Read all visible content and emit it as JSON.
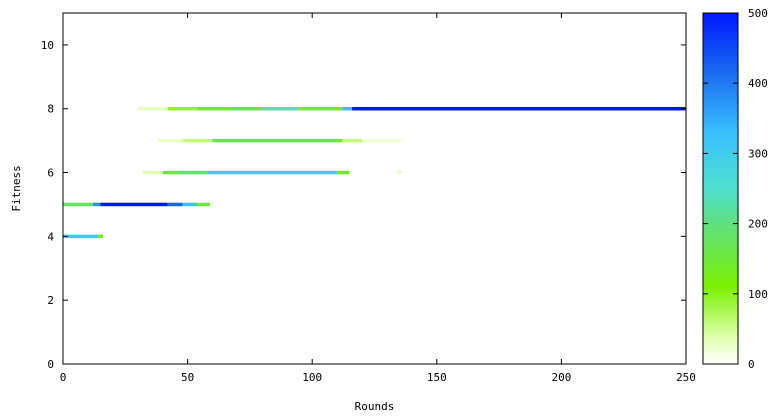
{
  "chart_data": {
    "type": "heatmap",
    "xlabel": "Rounds",
    "ylabel": "Fitness",
    "xlim": [
      0,
      250
    ],
    "ylim": [
      0,
      11
    ],
    "x_ticks": [
      0,
      50,
      100,
      150,
      200,
      250
    ],
    "y_ticks": [
      0,
      2,
      4,
      6,
      8,
      10
    ],
    "grid": false,
    "colorbar": {
      "range": [
        0,
        500
      ],
      "ticks": [
        0,
        100,
        200,
        300,
        400,
        500
      ],
      "stops": [
        {
          "v": 0,
          "color": "#ffffff"
        },
        {
          "v": 40,
          "color": "#dcffa8"
        },
        {
          "v": 110,
          "color": "#7cf000"
        },
        {
          "v": 200,
          "color": "#5ee080"
        },
        {
          "v": 250,
          "color": "#4fe0d0"
        },
        {
          "v": 330,
          "color": "#39c0ff"
        },
        {
          "v": 420,
          "color": "#1866f0"
        },
        {
          "v": 500,
          "color": "#0018ff"
        }
      ]
    },
    "series": [
      {
        "fitness": 4,
        "segments": [
          {
            "x0": 0,
            "x1": 14,
            "value": 310
          },
          {
            "x0": 14,
            "x1": 16,
            "value": 120
          }
        ]
      },
      {
        "fitness": 5,
        "segments": [
          {
            "x0": 0,
            "x1": 12,
            "value": 180
          },
          {
            "x0": 12,
            "x1": 15,
            "value": 380
          },
          {
            "x0": 15,
            "x1": 42,
            "value": 500
          },
          {
            "x0": 42,
            "x1": 48,
            "value": 420
          },
          {
            "x0": 48,
            "x1": 54,
            "value": 320
          },
          {
            "x0": 54,
            "x1": 59,
            "value": 130
          }
        ]
      },
      {
        "fitness": 6,
        "segments": [
          {
            "x0": 32,
            "x1": 40,
            "value": 35
          },
          {
            "x0": 40,
            "x1": 46,
            "value": 140
          },
          {
            "x0": 46,
            "x1": 58,
            "value": 190
          },
          {
            "x0": 58,
            "x1": 110,
            "value": 310
          },
          {
            "x0": 110,
            "x1": 115,
            "value": 140
          },
          {
            "x0": 134,
            "x1": 136,
            "value": 25
          }
        ]
      },
      {
        "fitness": 7,
        "segments": [
          {
            "x0": 38,
            "x1": 48,
            "value": 25
          },
          {
            "x0": 48,
            "x1": 60,
            "value": 60
          },
          {
            "x0": 60,
            "x1": 112,
            "value": 150
          },
          {
            "x0": 112,
            "x1": 120,
            "value": 60
          },
          {
            "x0": 120,
            "x1": 136,
            "value": 20
          }
        ]
      },
      {
        "fitness": 8,
        "segments": [
          {
            "x0": 30,
            "x1": 42,
            "value": 30
          },
          {
            "x0": 42,
            "x1": 54,
            "value": 90
          },
          {
            "x0": 54,
            "x1": 68,
            "value": 130
          },
          {
            "x0": 68,
            "x1": 80,
            "value": 170
          },
          {
            "x0": 80,
            "x1": 95,
            "value": 230
          },
          {
            "x0": 95,
            "x1": 112,
            "value": 140
          },
          {
            "x0": 112,
            "x1": 116,
            "value": 330
          },
          {
            "x0": 116,
            "x1": 250,
            "value": 500
          }
        ]
      }
    ]
  }
}
